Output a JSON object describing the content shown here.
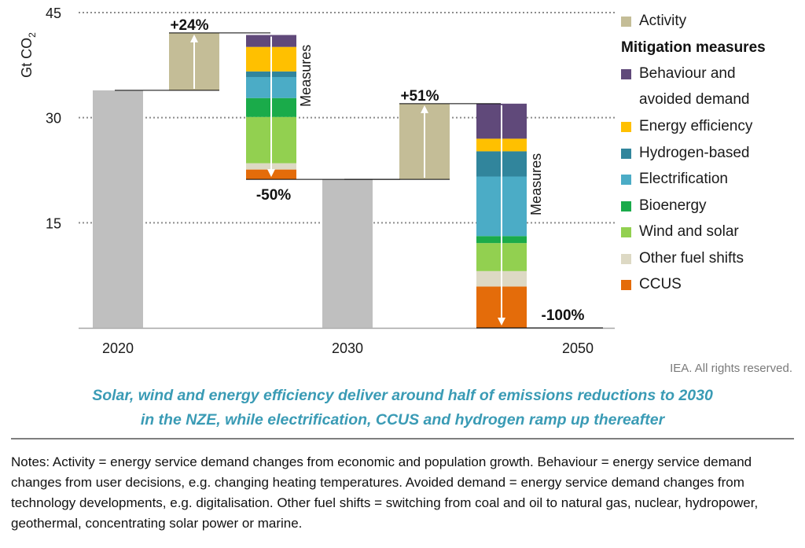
{
  "chart_data": {
    "type": "waterfall",
    "ylabel": "Gt CO",
    "ylabel_subscript": "2",
    "ylim": [
      0,
      45
    ],
    "yticks": [
      15,
      30,
      45
    ],
    "grid": "horizontal dotted",
    "colors": {
      "base": "#bfbfbf",
      "activity": "#c4bd97",
      "behaviour": "#60497a",
      "efficiency": "#ffc000",
      "hydrogen": "#31859c",
      "electrification": "#4bacc6",
      "bioenergy": "#1aab4a",
      "wind_solar": "#92d050",
      "other_fuel": "#ddd9c4",
      "ccus": "#e46c0a"
    },
    "bars": [
      {
        "name": "2020",
        "type": "total",
        "x_label": "2020",
        "value": 33.9
      },
      {
        "name": "activity-2030",
        "type": "increase",
        "from": 33.9,
        "to": 42.1,
        "label": "+24%"
      },
      {
        "name": "measures-2030",
        "type": "decrease",
        "label": "-50%",
        "arrow_label": "Measures",
        "stack_bottom": 21.2,
        "segments": [
          {
            "series": "ccus",
            "value": 1.4
          },
          {
            "series": "other_fuel",
            "value": 0.9
          },
          {
            "series": "wind_solar",
            "value": 6.6
          },
          {
            "series": "bioenergy",
            "value": 2.7
          },
          {
            "series": "electrification",
            "value": 3.0
          },
          {
            "series": "hydrogen",
            "value": 0.8
          },
          {
            "series": "efficiency",
            "value": 3.5
          },
          {
            "series": "behaviour",
            "value": 1.7
          }
        ]
      },
      {
        "name": "2030",
        "type": "total",
        "x_label": "2030",
        "value": 21.2
      },
      {
        "name": "activity-2050",
        "type": "increase",
        "from": 21.2,
        "to": 32.0,
        "label": "+51%"
      },
      {
        "name": "measures-2050",
        "type": "decrease",
        "label": "-100%",
        "arrow_label": "Measures",
        "stack_bottom": 0,
        "segments": [
          {
            "series": "ccus",
            "value": 5.9
          },
          {
            "series": "other_fuel",
            "value": 2.2
          },
          {
            "series": "wind_solar",
            "value": 4.0
          },
          {
            "series": "bioenergy",
            "value": 1.0
          },
          {
            "series": "electrification",
            "value": 8.5
          },
          {
            "series": "hydrogen",
            "value": 3.6
          },
          {
            "series": "efficiency",
            "value": 1.8
          },
          {
            "series": "behaviour",
            "value": 5.0
          }
        ]
      },
      {
        "name": "2050",
        "type": "total",
        "x_label": "2050",
        "value": 0
      }
    ],
    "legend": {
      "placement": "right",
      "activity": "Activity",
      "heading": "Mitigation measures",
      "items": [
        {
          "key": "behaviour",
          "line1": "Behaviour and",
          "line2": "avoided demand"
        },
        {
          "key": "efficiency",
          "line1": "Energy efficiency"
        },
        {
          "key": "hydrogen",
          "line1": "Hydrogen-based"
        },
        {
          "key": "electrification",
          "line1": "Electrification"
        },
        {
          "key": "bioenergy",
          "line1": "Bioenergy"
        },
        {
          "key": "wind_solar",
          "line1": "Wind and solar"
        },
        {
          "key": "other_fuel",
          "line1": "Other fuel shifts"
        },
        {
          "key": "ccus",
          "line1": "CCUS"
        }
      ]
    }
  },
  "credit": "IEA. All rights reserved.",
  "caption_line1": "Solar, wind and energy efficiency deliver around half of emissions reductions to 2030",
  "caption_line2": "in the NZE, while electrification, CCUS and hydrogen ramp up thereafter",
  "notes": "Notes: Activity = energy service demand changes from economic and population growth. Behaviour = energy service demand changes from user decisions, e.g. changing heating temperatures. Avoided demand = energy service demand changes from technology developments, e.g. digitalisation. Other fuel shifts = switching from coal and oil to natural gas, nuclear, hydropower, geothermal, concentrating solar power or marine."
}
